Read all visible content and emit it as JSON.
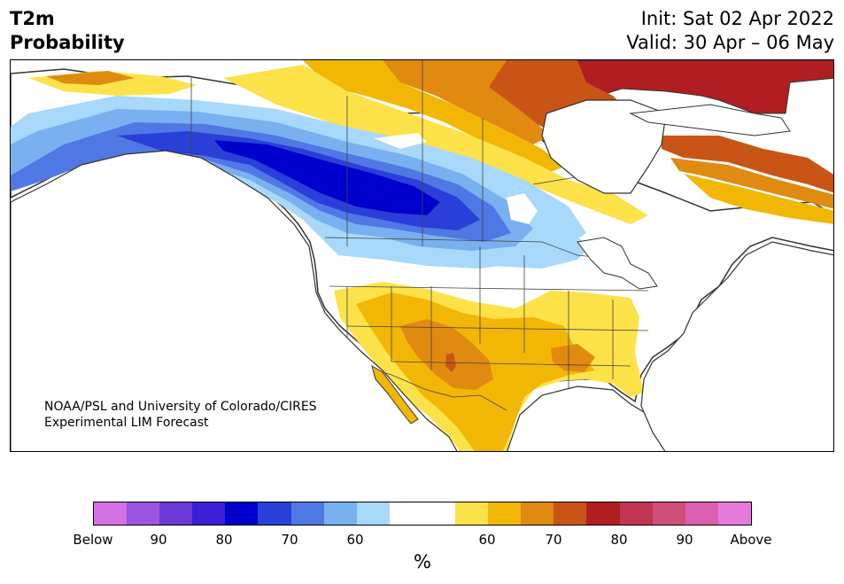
{
  "title": {
    "line1": "T2m",
    "line2": "Probability"
  },
  "header_right": {
    "init": "Init: Sat 02 Apr 2022",
    "valid": "Valid: 30 Apr – 06 May"
  },
  "credit": {
    "line1": "NOAA/PSL and University of Colorado/CIRES",
    "line2": "Experimental LIM Forecast"
  },
  "colorbar": {
    "unit": "%",
    "colors": [
      "#d672e6",
      "#9b55e0",
      "#6b3ad8",
      "#3a1fd6",
      "#0000cc",
      "#2a3fd8",
      "#5078e4",
      "#78b0f0",
      "#a8d8fa",
      "#ffffff",
      "#ffffff",
      "#fde24a",
      "#f2b705",
      "#e08a10",
      "#c85516",
      "#b01e22",
      "#c0354f",
      "#d04e7a",
      "#dd5fb0",
      "#e67bdd"
    ],
    "labels": [
      "Below",
      "90",
      "80",
      "70",
      "60",
      "60",
      "70",
      "80",
      "90",
      "Above"
    ]
  },
  "legend_colors": {
    "cold_60": "#a8d8fa",
    "cold_65": "#78b0f0",
    "cold_70": "#5078e4",
    "cold_75": "#2a3fd8",
    "cold_80": "#0000cc",
    "warm_60": "#fde24a",
    "warm_65": "#f2b705",
    "warm_70": "#e08a10",
    "warm_75": "#c85516",
    "warm_80": "#b01e22"
  }
}
